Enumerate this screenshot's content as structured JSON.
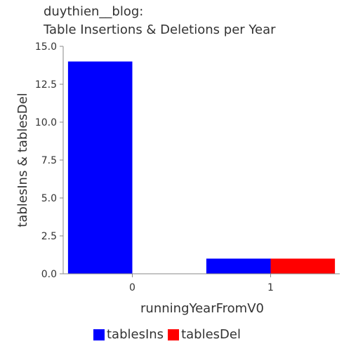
{
  "chart_data": {
    "type": "bar",
    "title_lines": [
      "duythien__blog:",
      "Table Insertions & Deletions per Year"
    ],
    "xlabel": "runningYearFromV0",
    "ylabel": "tablesIns & tablesDel",
    "categories": [
      "0",
      "1"
    ],
    "series": [
      {
        "name": "tablesIns",
        "values": [
          14,
          1
        ],
        "color": "#0000ff"
      },
      {
        "name": "tablesDel",
        "values": [
          0,
          1
        ],
        "color": "#ff0000"
      }
    ],
    "ylim": [
      0,
      15
    ],
    "yticks": [
      "0.0",
      "2.5",
      "5.0",
      "7.5",
      "10.0",
      "12.5",
      "15.0"
    ],
    "grid": false,
    "legend_position": "bottom"
  }
}
